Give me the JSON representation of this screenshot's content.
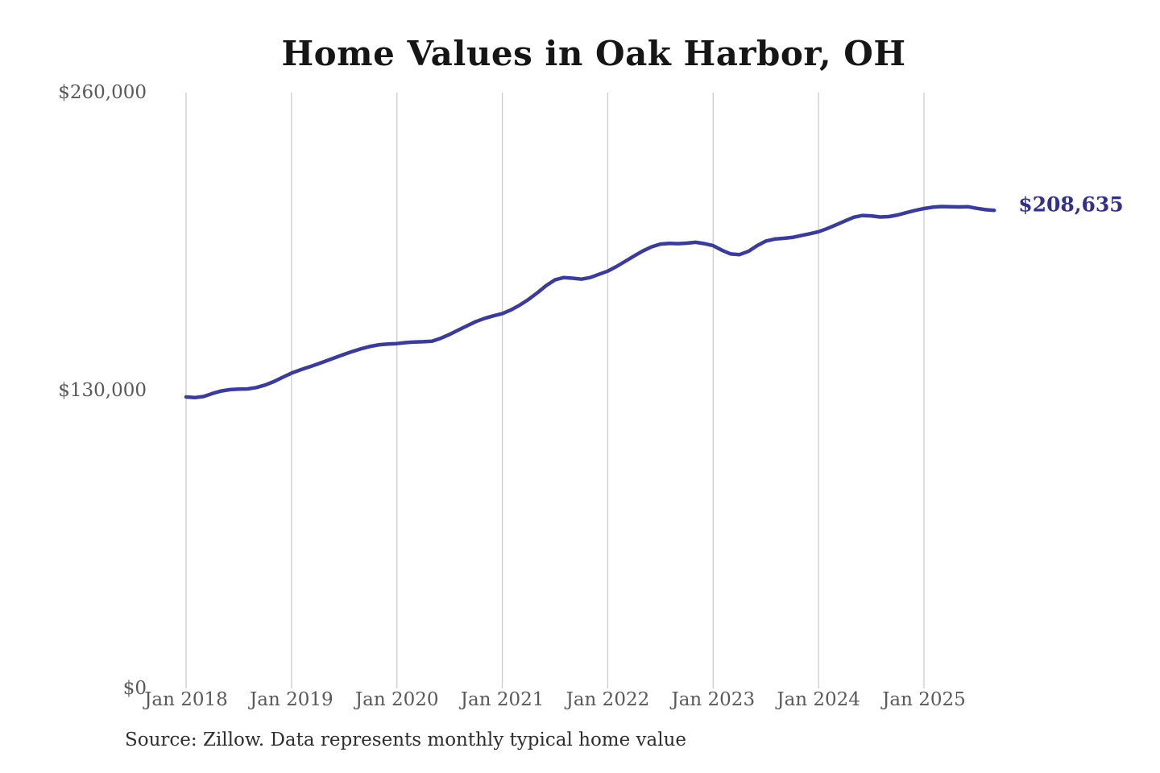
{
  "chart": {
    "end_label": "$208,635",
    "source_note": "Source: Zillow. Data represents monthly typical home value"
  },
  "chart_data": {
    "type": "line",
    "title": "Home Values in Oak Harbor, OH",
    "series_name": "Monthly typical home value",
    "x_unit": "month",
    "x_start": "2018-01",
    "x_end": "2025-09",
    "xlabel": "",
    "ylabel": "",
    "ylim": [
      0,
      260000
    ],
    "y_ticks": [
      0,
      130000,
      260000
    ],
    "y_tick_labels": [
      "$0",
      "$130,000",
      "$260,000"
    ],
    "x_tick_labels": [
      "Jan 2018",
      "Jan 2019",
      "Jan 2020",
      "Jan 2021",
      "Jan 2022",
      "Jan 2023",
      "Jan 2024",
      "Jan 2025"
    ],
    "grid": "vertical-only",
    "legend": "none",
    "line_color": "#3b3b98",
    "end_label_color": "#31318c",
    "grid_color": "#cccccc",
    "tick_color": "#595959",
    "final_value": 208635,
    "months": [
      "2018-01",
      "2018-02",
      "2018-03",
      "2018-04",
      "2018-05",
      "2018-06",
      "2018-07",
      "2018-08",
      "2018-09",
      "2018-10",
      "2018-11",
      "2018-12",
      "2019-01",
      "2019-02",
      "2019-03",
      "2019-04",
      "2019-05",
      "2019-06",
      "2019-07",
      "2019-08",
      "2019-09",
      "2019-10",
      "2019-11",
      "2019-12",
      "2020-01",
      "2020-02",
      "2020-03",
      "2020-04",
      "2020-05",
      "2020-06",
      "2020-07",
      "2020-08",
      "2020-09",
      "2020-10",
      "2020-11",
      "2020-12",
      "2021-01",
      "2021-02",
      "2021-03",
      "2021-04",
      "2021-05",
      "2021-06",
      "2021-07",
      "2021-08",
      "2021-09",
      "2021-10",
      "2021-11",
      "2021-12",
      "2022-01",
      "2022-02",
      "2022-03",
      "2022-04",
      "2022-05",
      "2022-06",
      "2022-07",
      "2022-08",
      "2022-09",
      "2022-10",
      "2022-11",
      "2022-12",
      "2023-01",
      "2023-02",
      "2023-03",
      "2023-04",
      "2023-05",
      "2023-06",
      "2023-07",
      "2023-08",
      "2023-09",
      "2023-10",
      "2023-11",
      "2023-12",
      "2024-01",
      "2024-02",
      "2024-03",
      "2024-04",
      "2024-05",
      "2024-06",
      "2024-07",
      "2024-08",
      "2024-09",
      "2024-10",
      "2024-11",
      "2024-12",
      "2025-01",
      "2025-02",
      "2025-03",
      "2025-04",
      "2025-05",
      "2025-06",
      "2025-07",
      "2025-08",
      "2025-09"
    ],
    "values": [
      127200,
      126900,
      127400,
      128700,
      129800,
      130400,
      130600,
      130700,
      131300,
      132400,
      133900,
      135800,
      137600,
      139000,
      140300,
      141600,
      143000,
      144400,
      145800,
      147100,
      148300,
      149300,
      150000,
      150300,
      150500,
      150900,
      151200,
      151300,
      151500,
      152800,
      154500,
      156400,
      158300,
      160100,
      161500,
      162600,
      163600,
      165200,
      167300,
      169800,
      172700,
      175800,
      178300,
      179300,
      179000,
      178600,
      179300,
      180700,
      182100,
      184100,
      186400,
      188700,
      190900,
      192700,
      193900,
      194200,
      194100,
      194300,
      194700,
      194100,
      193200,
      191200,
      189600,
      189300,
      190700,
      193200,
      195200,
      196100,
      196400,
      196800,
      197600,
      198400,
      199300,
      200700,
      202300,
      204000,
      205600,
      206400,
      206200,
      205700,
      205900,
      206600,
      207600,
      208600,
      209400,
      210000,
      210300,
      210200,
      210100,
      210200,
      209500,
      208900,
      208635
    ]
  }
}
